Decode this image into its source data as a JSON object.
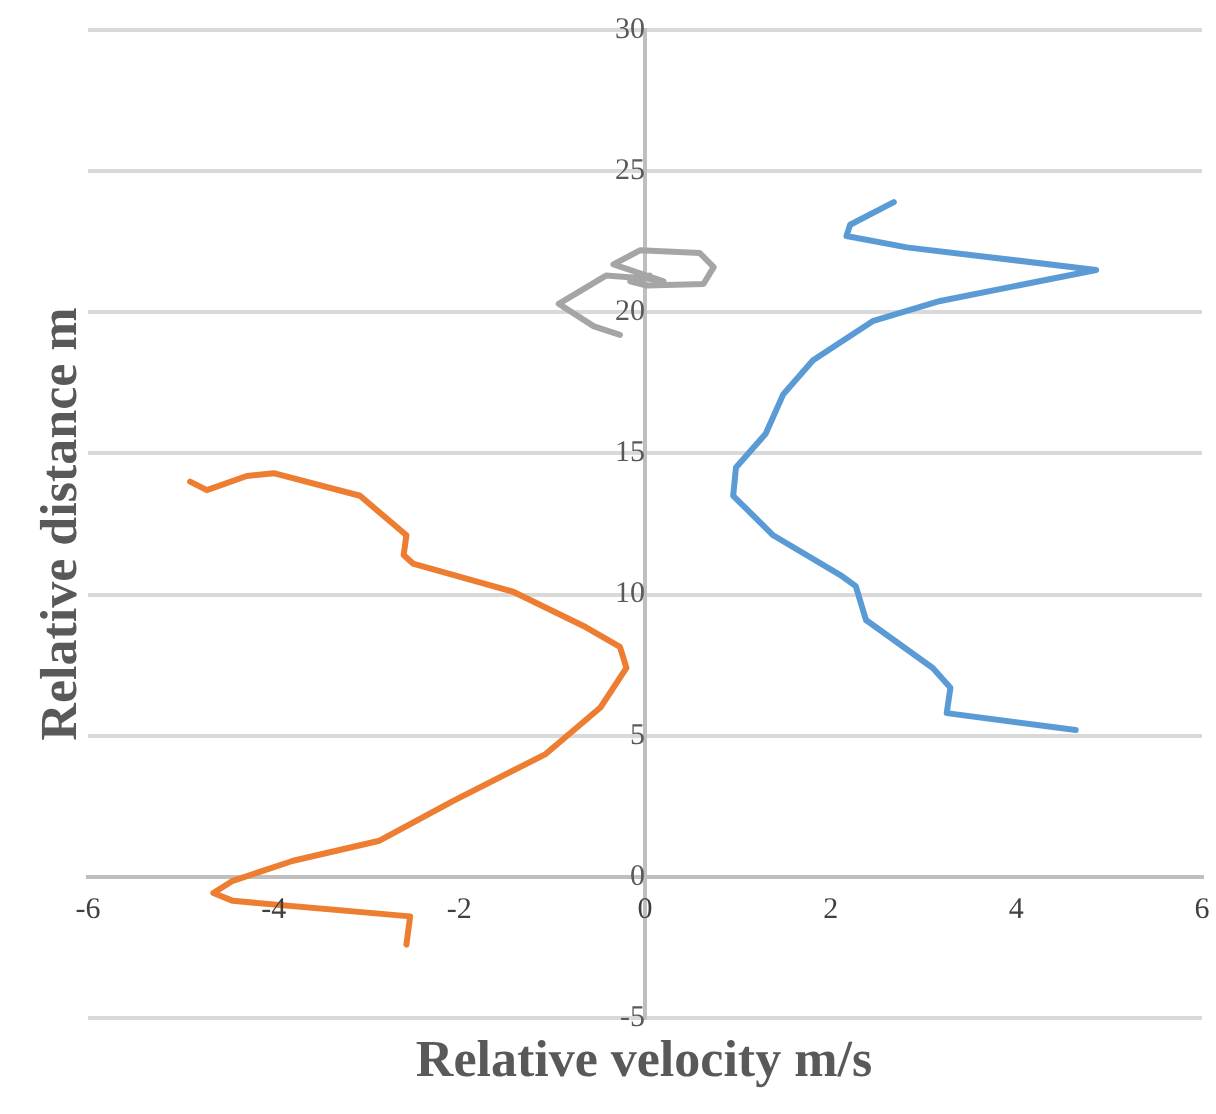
{
  "chart_data": {
    "type": "line",
    "xlabel": "Relative velocity m/s",
    "ylabel": "Relative distance m",
    "xlim": [
      -6,
      6
    ],
    "xticks": [
      -6,
      -4,
      -2,
      0,
      2,
      4,
      6
    ],
    "ylim": [
      -5,
      30
    ],
    "yticks": [
      -5,
      0,
      5,
      10,
      15,
      20,
      25,
      30
    ],
    "grid": "y",
    "legend": false,
    "marker": "none",
    "line_style": "solid",
    "series": [
      {
        "color": "#5b9bd5",
        "x": [
          4.64,
          3.25,
          3.29,
          3.1,
          2.38,
          2.27,
          2.1,
          1.38,
          0.95,
          0.98,
          1.3,
          1.49,
          1.81,
          2.46,
          3.18,
          4.86,
          2.82,
          2.17,
          2.21,
          2.68
        ],
        "values": [
          5.2,
          5.8,
          6.7,
          7.4,
          9.1,
          10.3,
          10.7,
          12.1,
          13.5,
          14.5,
          15.7,
          17.1,
          18.3,
          19.7,
          20.4,
          21.5,
          22.3,
          22.7,
          23.1,
          23.9
        ]
      },
      {
        "color": "#ed7d31",
        "x": [
          -2.57,
          -2.53,
          -4.44,
          -4.65,
          -4.44,
          -3.79,
          -2.86,
          -2.06,
          -1.07,
          -0.48,
          -0.2,
          -0.27,
          -0.64,
          -1.42,
          -2.5,
          -2.6,
          -2.57,
          -3.07,
          -4.0,
          -4.29,
          -4.72,
          -4.9
        ],
        "values": [
          -2.4,
          -1.4,
          -0.85,
          -0.57,
          -0.14,
          0.57,
          1.28,
          2.7,
          4.35,
          6.0,
          7.4,
          8.15,
          8.85,
          10.1,
          11.1,
          11.4,
          12.1,
          13.5,
          14.3,
          14.2,
          13.7,
          14.0
        ]
      },
      {
        "color": "#a5a5a5",
        "x": [
          -0.27,
          -0.55,
          -0.93,
          -0.42,
          0.01,
          0.2,
          -0.34,
          -0.05,
          0.59,
          0.74,
          0.63,
          0.02,
          -0.16,
          0.05
        ],
        "values": [
          19.2,
          19.5,
          20.3,
          21.3,
          21.2,
          21.1,
          21.7,
          22.2,
          22.1,
          21.6,
          21.0,
          20.95,
          21.1,
          21.3
        ]
      }
    ]
  }
}
